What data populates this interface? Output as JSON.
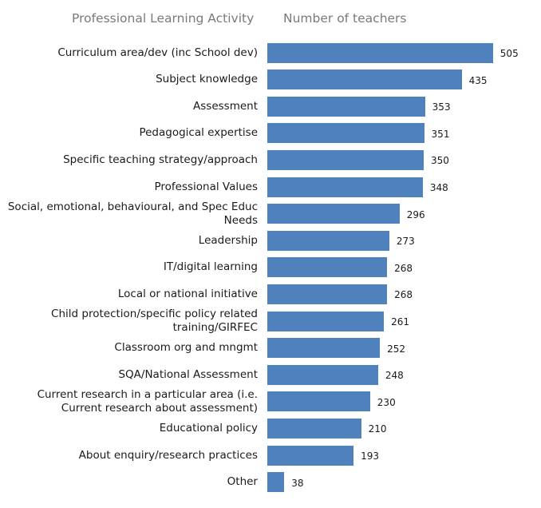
{
  "header": {
    "activity_label": "Professional Learning Activity",
    "count_label": "Number of teachers"
  },
  "colors": {
    "bar": "#4f81bd"
  },
  "chart_data": {
    "type": "bar",
    "orientation": "horizontal",
    "categories": [
      "Curriculum area/dev (inc School dev)",
      "Subject knowledge",
      "Assessment",
      "Pedagogical expertise",
      "Specific teaching strategy/approach",
      "Professional Values",
      "Social, emotional, behavioural, and Spec Educ Needs",
      "Leadership",
      "IT/digital learning",
      "Local or national initiative",
      "Child protection/specific policy related training/GIRFEC",
      "Classroom org and mngmt",
      "SQA/National Assessment",
      "Current research in a particular area (i.e. Current research about assessment)",
      "Educational policy",
      "About enquiry/research practices",
      "Other"
    ],
    "values": [
      505,
      435,
      353,
      351,
      350,
      348,
      296,
      273,
      268,
      268,
      261,
      252,
      248,
      230,
      210,
      193,
      38
    ],
    "data_labels": true,
    "grid": false
  }
}
